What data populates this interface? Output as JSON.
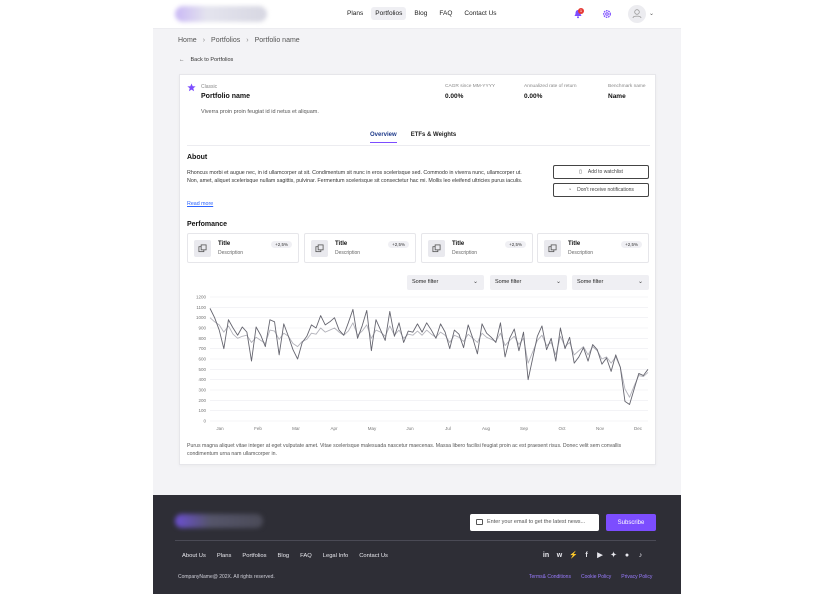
{
  "nav": {
    "links": [
      "Plans",
      "Portfolios",
      "Blog",
      "FAQ",
      "Contact Us"
    ],
    "active": "Portfolios",
    "notification_count": "1"
  },
  "breadcrumb": [
    "Home",
    "Portfolios",
    "Portfolio name"
  ],
  "back_link": "Back to Portfolios",
  "portfolio": {
    "type": "Classic",
    "name": "Portfolio name",
    "description": "Viverra proin proin feugiat id id netus et aliquam.",
    "stats": [
      {
        "label": "CAGR since MM-YYYY",
        "value": "0.00%"
      },
      {
        "label": "Annualized rate of return",
        "value": "0.00%"
      },
      {
        "label": "Benchmark name",
        "value": "Name"
      }
    ]
  },
  "tabs": [
    "Overview",
    "ETFs & Weights"
  ],
  "about": {
    "title": "About",
    "text": "Rhoncus morbi et augue nec, in id ullamcorper at sit. Condimentum sit nunc in eros scelerisque sed. Commodo in viverra nunc, ullamcorper ut. Non, amet, aliquet scelerisque nullam sagittis, pulvinar. Fermentum scelerisque sit consectetur hac mi. Mollis leo eleifend ultricies purus iaculis.",
    "read_more": "Read more",
    "add_watchlist": "Add to watchlist",
    "notifications": "Don't receive notifications"
  },
  "performance": {
    "title": "Perfomance",
    "cards": [
      {
        "title": "Title",
        "description": "Description",
        "badge": "+2,5%"
      },
      {
        "title": "Title",
        "description": "Description",
        "badge": "+2,5%"
      },
      {
        "title": "Title",
        "description": "Description",
        "badge": "+2,5%"
      },
      {
        "title": "Title",
        "description": "Description",
        "badge": "+2,5%"
      }
    ],
    "filters": [
      "Some filter",
      "Some filter",
      "Some filter"
    ]
  },
  "chart_data": {
    "type": "line",
    "ylim": [
      0,
      1200
    ],
    "yticks": [
      0,
      100,
      200,
      300,
      400,
      500,
      600,
      700,
      800,
      900,
      1000,
      1100,
      1200
    ],
    "xticks": [
      "Jan",
      "Feb",
      "Mar",
      "Apr",
      "May",
      "Jun",
      "Jul",
      "Aug",
      "Sep",
      "Oct",
      "Nov",
      "Dec"
    ],
    "series": [
      {
        "color": "#666670",
        "values": [
          1090,
          1000,
          880,
          700,
          980,
          900,
          830,
          910,
          860,
          580,
          910,
          830,
          720,
          980,
          960,
          640,
          940,
          820,
          690,
          600,
          760,
          820,
          930,
          900,
          1020,
          930,
          960,
          1000,
          880,
          830,
          950,
          1080,
          800,
          920,
          1070,
          680,
          980,
          880,
          780,
          1060,
          820,
          950,
          760,
          870,
          860,
          940,
          860,
          950,
          880,
          800,
          940,
          860,
          700,
          880,
          840,
          710,
          930,
          800,
          650,
          940,
          850,
          810,
          760,
          950,
          620,
          800,
          890,
          680,
          860,
          400,
          610,
          820,
          920,
          690,
          800,
          580,
          900,
          700,
          810,
          560,
          620,
          710,
          580,
          740,
          690,
          550,
          610,
          480,
          640,
          520,
          190,
          160,
          310,
          460,
          440,
          500
        ]
      },
      {
        "color": "#b3b3bb",
        "values": [
          1000,
          960,
          930,
          860,
          920,
          840,
          800,
          820,
          830,
          760,
          810,
          780,
          750,
          880,
          870,
          790,
          850,
          820,
          750,
          720,
          770,
          790,
          850,
          840,
          900,
          860,
          880,
          900,
          860,
          830,
          870,
          950,
          830,
          870,
          930,
          800,
          880,
          860,
          820,
          920,
          830,
          880,
          800,
          840,
          830,
          870,
          830,
          880,
          840,
          810,
          860,
          830,
          760,
          830,
          810,
          770,
          840,
          800,
          760,
          850,
          810,
          790,
          770,
          850,
          730,
          780,
          820,
          740,
          800,
          560,
          670,
          780,
          830,
          730,
          760,
          640,
          820,
          720,
          760,
          640,
          680,
          720,
          640,
          720,
          680,
          600,
          620,
          560,
          620,
          520,
          310,
          230,
          340,
          440,
          430,
          470
        ]
      }
    ]
  },
  "chart_note": "Purus magna aliquet vitae integer at eget vulputate amet. Vitae scelerisque malesuada nascetur maecenas. Massa libero facilisi feugiat proin ac est praesent risus. Donec velit sem convallis condimentum urna nam ullamcorper in.",
  "footer": {
    "newsletter_placeholder": "Enter your email to get the latest news...",
    "subscribe": "Subscribe",
    "links": [
      "About Us",
      "Plans",
      "Portfolios",
      "Blog",
      "FAQ",
      "Legal Info",
      "Contact Us"
    ],
    "copyright": "CompanyName@ 202X. All rights reserved.",
    "legal": [
      "Terms& Conditions",
      "Cookie Policy",
      "Privacy Policy"
    ],
    "socials": [
      "linkedin-icon",
      "wellfound-icon",
      "slack-icon",
      "facebook-icon",
      "youtube-icon",
      "twitter-icon",
      "reddit-icon",
      "tiktok-icon"
    ]
  }
}
